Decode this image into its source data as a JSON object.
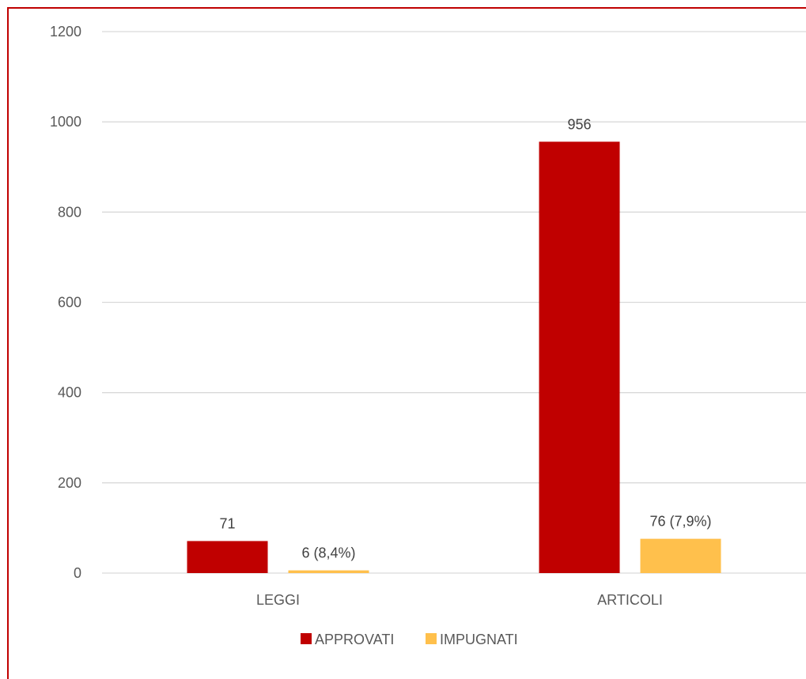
{
  "chart_data": {
    "type": "bar",
    "categories": [
      "LEGGI",
      "ARTICOLI"
    ],
    "series": [
      {
        "name": "APPROVATI",
        "color": "#c00000",
        "values": [
          71,
          956
        ],
        "labels": [
          "71",
          "956"
        ]
      },
      {
        "name": "IMPUGNATI",
        "color": "#ffc04c",
        "values": [
          6,
          76
        ],
        "labels": [
          "6 (8,4%)",
          "76 (7,9%)"
        ]
      }
    ],
    "yticks": [
      "0",
      "200",
      "400",
      "600",
      "800",
      "1000",
      "1200"
    ],
    "ylim": [
      0,
      1200
    ],
    "grid": true,
    "legend_position": "bottom",
    "frame_color": "#c00000"
  }
}
